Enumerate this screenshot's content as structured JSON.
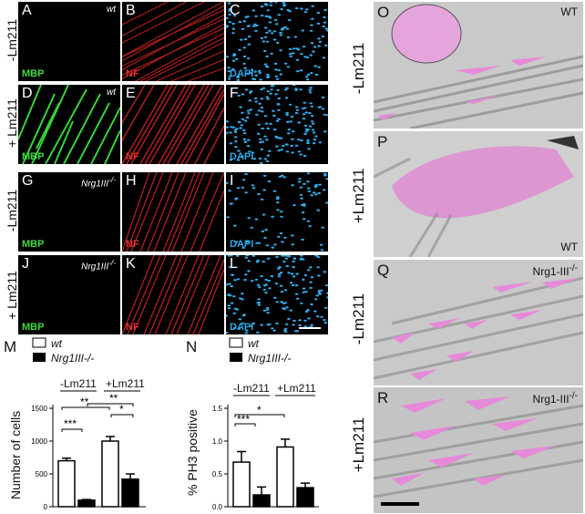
{
  "rows": {
    "minus": "-Lm211",
    "plus": "+ Lm211",
    "em_minus": "-Lm211",
    "em_plus": "+Lm211"
  },
  "stains": {
    "mbp": "MBP",
    "nf": "NF",
    "dapi": "DAPI"
  },
  "genotypes": {
    "wt": "wt",
    "nrg": "Nrg1III",
    "nrg_sup": "-/-"
  },
  "letters": {
    "A": "A",
    "B": "B",
    "C": "C",
    "D": "D",
    "E": "E",
    "F": "F",
    "G": "G",
    "H": "H",
    "I": "I",
    "J": "J",
    "K": "K",
    "L": "L",
    "M": "M",
    "N": "N",
    "O": "O",
    "P": "P",
    "Q": "Q",
    "R": "R"
  },
  "em_genotypes": {
    "O": "WT",
    "P": "WT",
    "Q": "Nrg1-III",
    "R": "Nrg1-III",
    "sup": "-/-"
  },
  "colors": {
    "mbp": "#3ddb3d",
    "nf": "#e83030",
    "dapi": "#2ea8e8",
    "myelin": "#e58ad8"
  },
  "chart_data": [
    {
      "type": "bar",
      "panel": "M",
      "legend": [
        "wt",
        "Nrg1III-/-"
      ],
      "groups": [
        "-Lm211",
        "+Lm211"
      ],
      "series": [
        {
          "name": "wt",
          "values": [
            700,
            1000
          ],
          "errors": [
            40,
            70
          ]
        },
        {
          "name": "Nrg1III-/-",
          "values": [
            100,
            420
          ],
          "errors": [
            10,
            80
          ]
        }
      ],
      "ylabel": "Number of cells",
      "ylim": [
        0,
        1500
      ],
      "yticks": [
        "0",
        "500",
        "1000",
        "1500"
      ],
      "significance": [
        "***",
        "**",
        "**",
        "*"
      ]
    },
    {
      "type": "bar",
      "panel": "N",
      "legend": [
        "wt",
        "Nrg1III-/-"
      ],
      "groups": [
        "-Lm211",
        "+Lm211"
      ],
      "series": [
        {
          "name": "wt",
          "values": [
            0.68,
            0.91
          ],
          "errors": [
            0.16,
            0.12
          ]
        },
        {
          "name": "Nrg1III-/-",
          "values": [
            0.18,
            0.29
          ],
          "errors": [
            0.12,
            0.07
          ]
        }
      ],
      "ylabel": "% PH3 positive",
      "ylim": [
        0,
        1.5
      ],
      "yticks": [
        "0.0",
        "0.5",
        "1.0",
        "1.5"
      ],
      "significance": [
        "***",
        "*"
      ]
    }
  ]
}
